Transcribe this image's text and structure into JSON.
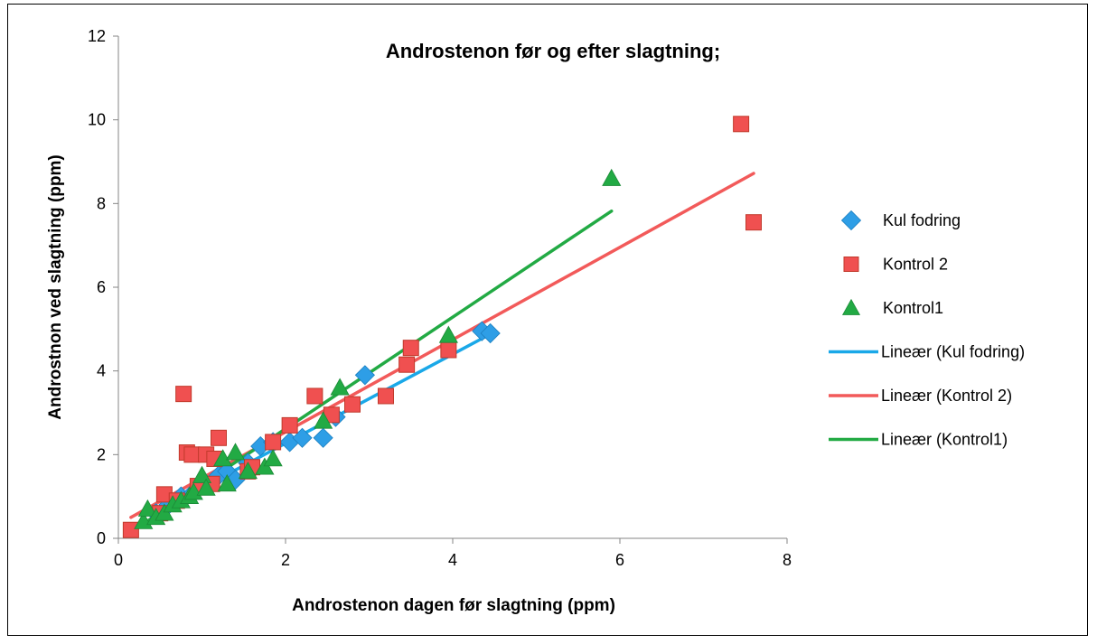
{
  "chart_data": {
    "type": "scatter",
    "title": "Androstenon før og efter slagtning;",
    "xlabel": "Androstenon dagen før slagtning (ppm)",
    "ylabel": "Androstnon ved slagtning (ppm)",
    "xlim": [
      0,
      8
    ],
    "ylim": [
      0,
      12
    ],
    "xticks": [
      "0",
      "2",
      "4",
      "6",
      "8"
    ],
    "yticks": [
      "0",
      "2",
      "4",
      "6",
      "8",
      "10",
      "12"
    ],
    "grid": false,
    "legend_position": "right",
    "series": [
      {
        "name": "Kul fodring",
        "marker": "diamond",
        "color": "#2e9ee6",
        "x": [
          0.45,
          0.6,
          0.75,
          0.9,
          1.05,
          1.2,
          1.3,
          1.4,
          1.55,
          1.7,
          1.85,
          2.05,
          2.2,
          2.45,
          2.6,
          2.95,
          4.35,
          4.45
        ],
        "y": [
          0.6,
          0.8,
          1.0,
          1.1,
          1.3,
          1.5,
          1.6,
          1.4,
          1.8,
          2.2,
          2.3,
          2.3,
          2.4,
          2.4,
          2.9,
          3.9,
          4.95,
          4.9
        ]
      },
      {
        "name": "Kontrol 2",
        "marker": "square",
        "color": "#f05050",
        "x": [
          0.15,
          0.5,
          0.55,
          0.7,
          0.78,
          0.82,
          0.88,
          0.95,
          1.05,
          1.12,
          1.15,
          1.2,
          1.55,
          1.6,
          1.85,
          2.05,
          2.35,
          2.55,
          2.8,
          3.2,
          3.45,
          3.5,
          3.95,
          7.45,
          7.6
        ],
        "y": [
          0.2,
          0.6,
          1.05,
          0.9,
          3.45,
          2.05,
          2.0,
          1.25,
          2.0,
          1.3,
          1.9,
          2.4,
          1.6,
          1.7,
          2.3,
          2.7,
          3.4,
          2.95,
          3.2,
          3.4,
          4.15,
          4.55,
          4.5,
          9.9,
          7.55
        ]
      },
      {
        "name": "Kontrol1",
        "marker": "triangle",
        "color": "#22aa44",
        "x": [
          0.3,
          0.35,
          0.45,
          0.55,
          0.65,
          0.75,
          0.85,
          0.9,
          1.0,
          1.05,
          1.25,
          1.3,
          1.4,
          1.55,
          1.75,
          1.85,
          2.45,
          2.65,
          3.95,
          5.9
        ],
        "y": [
          0.4,
          0.7,
          0.5,
          0.6,
          0.8,
          0.9,
          1.0,
          1.1,
          1.5,
          1.2,
          1.9,
          1.3,
          2.05,
          1.6,
          1.7,
          1.9,
          2.8,
          3.6,
          4.85,
          8.6
        ]
      }
    ],
    "trendlines": [
      {
        "name": "Lineær (Kul fodring)",
        "color": "#1aa8e8",
        "x": [
          0.45,
          4.45
        ],
        "y": [
          0.62,
          4.88
        ]
      },
      {
        "name": "Lineær (Kontrol 2)",
        "color": "#f25a5a",
        "x": [
          0.15,
          7.6
        ],
        "y": [
          0.5,
          8.72
        ]
      },
      {
        "name": "Lineær (Kontrol1)",
        "color": "#22aa44",
        "x": [
          0.3,
          5.9
        ],
        "y": [
          0.35,
          7.82
        ]
      }
    ]
  }
}
